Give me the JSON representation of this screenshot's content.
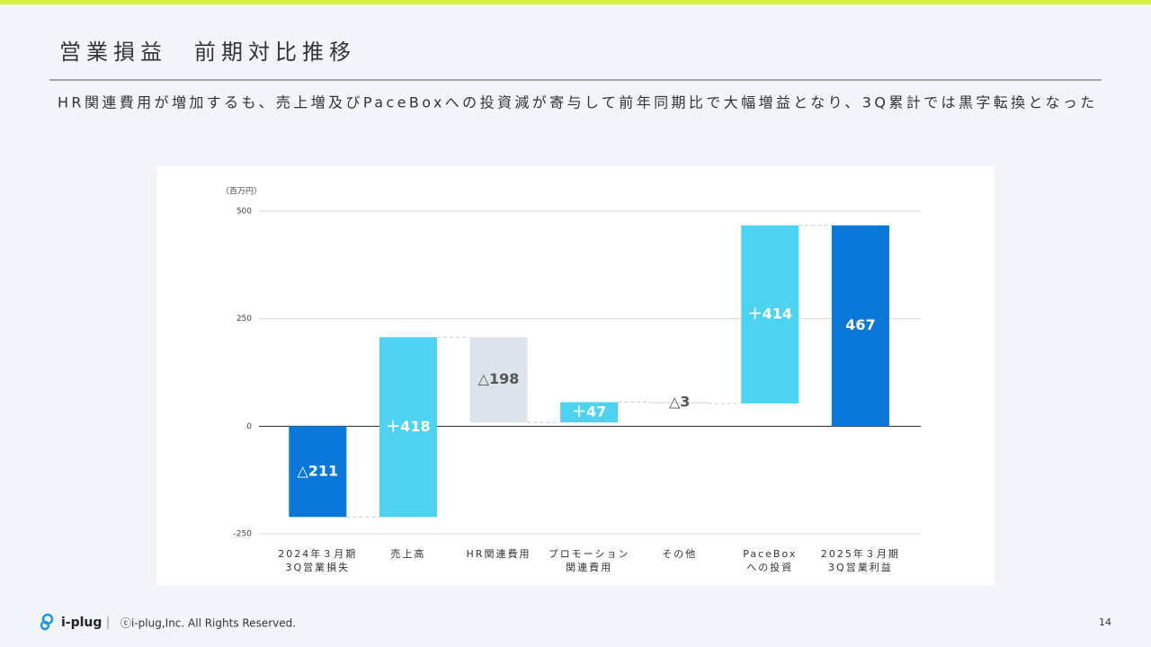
{
  "slide": {
    "title": "営業損益　前期対比推移",
    "subtitle": "HR関連費用が増加するも、売上増及びPaceBoxへの投資減が寄与して前年同期比で大幅増益となり、3Q累計では黒字転換となった",
    "logo": "i-plug",
    "footer": "ⓒi-plug,Inc. All Rights Reserved.",
    "page": "14"
  },
  "chart_data": {
    "type": "waterfall",
    "unit_label": "（百万円）",
    "categories": [
      "2024年３月期\n3Q営業損失",
      "売上高",
      "HR関連費用",
      "プロモーション\n関連費用",
      "その他",
      "PaceBox\nへの投資",
      "2025年３月期\n3Q営業利益"
    ],
    "measure": [
      "total",
      "relative",
      "relative",
      "relative",
      "relative",
      "relative",
      "total"
    ],
    "values": [
      -211,
      418,
      -198,
      47,
      -3,
      414,
      467
    ],
    "value_labels": [
      "△211",
      "＋418",
      "△198",
      "＋47",
      "△3",
      "＋414",
      "467"
    ],
    "colors": [
      "#0a78d8",
      "#4dd2f0",
      "#dde3ea",
      "#4dd2f0",
      "#dde3ea",
      "#4dd2f0",
      "#0a78d8"
    ],
    "ylim": [
      -250,
      500
    ],
    "yticks": [
      -250,
      0,
      250,
      500
    ],
    "grid": true
  }
}
